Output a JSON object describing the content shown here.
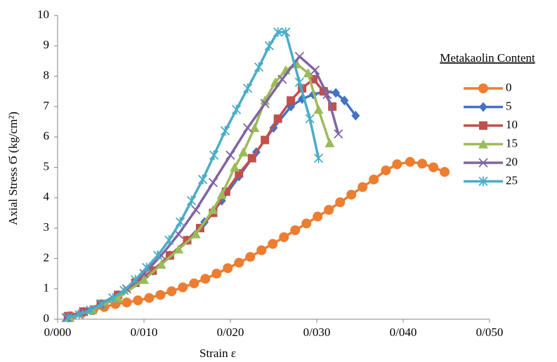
{
  "chart_data": {
    "type": "line",
    "x_label": "Strain ε",
    "y_label": "Axial Stress Ϭ (kg/cm²)",
    "legend_title": "Metakaolin Content",
    "legend": "right",
    "grid": false,
    "xlim": [
      0,
      0.05
    ],
    "xticks": [
      {
        "value": 0,
        "label": "0/000"
      },
      {
        "value": 0.01,
        "label": "0/010"
      },
      {
        "value": 0.02,
        "label": "0/020"
      },
      {
        "value": 0.03,
        "label": "0/030"
      },
      {
        "value": 0.04,
        "label": "0/040"
      },
      {
        "value": 0.05,
        "label": "0/050"
      }
    ],
    "ylim": [
      0,
      10
    ],
    "yticks": [
      0,
      1,
      2,
      3,
      4,
      5,
      6,
      7,
      8,
      9,
      10
    ],
    "series": [
      {
        "name": "0",
        "color": "#ed7d31",
        "marker": "circle",
        "x": [
          0.0015,
          0.0028,
          0.0041,
          0.0054,
          0.0067,
          0.008,
          0.0093,
          0.0106,
          0.0119,
          0.0132,
          0.0145,
          0.0158,
          0.0171,
          0.0184,
          0.0197,
          0.021,
          0.0223,
          0.0236,
          0.0249,
          0.0262,
          0.0275,
          0.0288,
          0.0301,
          0.0314,
          0.0327,
          0.034,
          0.0353,
          0.0366,
          0.038,
          0.0393,
          0.0408,
          0.0422,
          0.0435,
          0.0448
        ],
        "values": [
          0.1,
          0.2,
          0.3,
          0.4,
          0.5,
          0.55,
          0.62,
          0.7,
          0.8,
          0.92,
          1.05,
          1.18,
          1.33,
          1.5,
          1.68,
          1.86,
          2.05,
          2.27,
          2.48,
          2.7,
          2.93,
          3.15,
          3.38,
          3.6,
          3.85,
          4.1,
          4.35,
          4.6,
          4.9,
          5.1,
          5.18,
          5.12,
          5.0,
          4.85
        ]
      },
      {
        "name": "5",
        "color": "#4472c4",
        "marker": "diamond",
        "x": [
          0.0012,
          0.003,
          0.005,
          0.007,
          0.009,
          0.011,
          0.013,
          0.015,
          0.017,
          0.019,
          0.021,
          0.023,
          0.025,
          0.027,
          0.0283,
          0.0296,
          0.031,
          0.0322,
          0.0332,
          0.0345
        ],
        "values": [
          0.1,
          0.25,
          0.5,
          0.8,
          1.2,
          1.6,
          2.1,
          2.6,
          3.2,
          3.9,
          4.7,
          5.5,
          6.3,
          7.0,
          7.25,
          7.4,
          7.5,
          7.45,
          7.2,
          6.7
        ]
      },
      {
        "name": "10",
        "color": "#c0504d",
        "marker": "square",
        "x": [
          0.0012,
          0.003,
          0.005,
          0.007,
          0.009,
          0.011,
          0.013,
          0.015,
          0.0165,
          0.018,
          0.0195,
          0.021,
          0.0225,
          0.024,
          0.0255,
          0.027,
          0.0283,
          0.0296,
          0.0308,
          0.0318
        ],
        "values": [
          0.1,
          0.25,
          0.5,
          0.8,
          1.2,
          1.6,
          2.1,
          2.6,
          3.0,
          3.5,
          4.2,
          4.8,
          5.3,
          5.9,
          6.6,
          7.2,
          7.6,
          7.9,
          7.5,
          7.0
        ]
      },
      {
        "name": "15",
        "color": "#9bbb59",
        "marker": "triangle",
        "x": [
          0.0014,
          0.004,
          0.007,
          0.01,
          0.012,
          0.014,
          0.016,
          0.018,
          0.019,
          0.0205,
          0.0215,
          0.0228,
          0.024,
          0.0252,
          0.0264,
          0.0277,
          0.029,
          0.0302,
          0.0315
        ],
        "values": [
          0.05,
          0.3,
          0.7,
          1.3,
          1.8,
          2.3,
          2.8,
          3.6,
          4.1,
          5.0,
          5.5,
          6.3,
          7.2,
          7.8,
          8.2,
          8.4,
          8.1,
          6.9,
          5.8
        ]
      },
      {
        "name": "20",
        "color": "#8064a2",
        "marker": "x",
        "x": [
          0.001,
          0.003,
          0.005,
          0.008,
          0.01,
          0.012,
          0.014,
          0.016,
          0.018,
          0.02,
          0.022,
          0.024,
          0.026,
          0.028,
          0.0298,
          0.0312,
          0.0325
        ],
        "values": [
          0.05,
          0.25,
          0.5,
          1.0,
          1.5,
          2.1,
          2.8,
          3.6,
          4.5,
          5.4,
          6.3,
          7.1,
          7.9,
          8.65,
          8.2,
          7.4,
          6.1
        ]
      },
      {
        "name": "25",
        "color": "#4bacc6",
        "marker": "star",
        "x": [
          0.0012,
          0.0025,
          0.0038,
          0.0051,
          0.0064,
          0.0077,
          0.009,
          0.0103,
          0.0116,
          0.0129,
          0.0142,
          0.0155,
          0.0168,
          0.0181,
          0.0194,
          0.0207,
          0.022,
          0.0233,
          0.0245,
          0.0255,
          0.0264,
          0.028,
          0.0292,
          0.0302
        ],
        "values": [
          0.05,
          0.15,
          0.3,
          0.5,
          0.7,
          0.95,
          1.3,
          1.7,
          2.1,
          2.6,
          3.2,
          3.9,
          4.6,
          5.4,
          6.2,
          6.9,
          7.6,
          8.3,
          9.0,
          9.45,
          9.45,
          7.8,
          6.6,
          5.3
        ]
      }
    ]
  }
}
